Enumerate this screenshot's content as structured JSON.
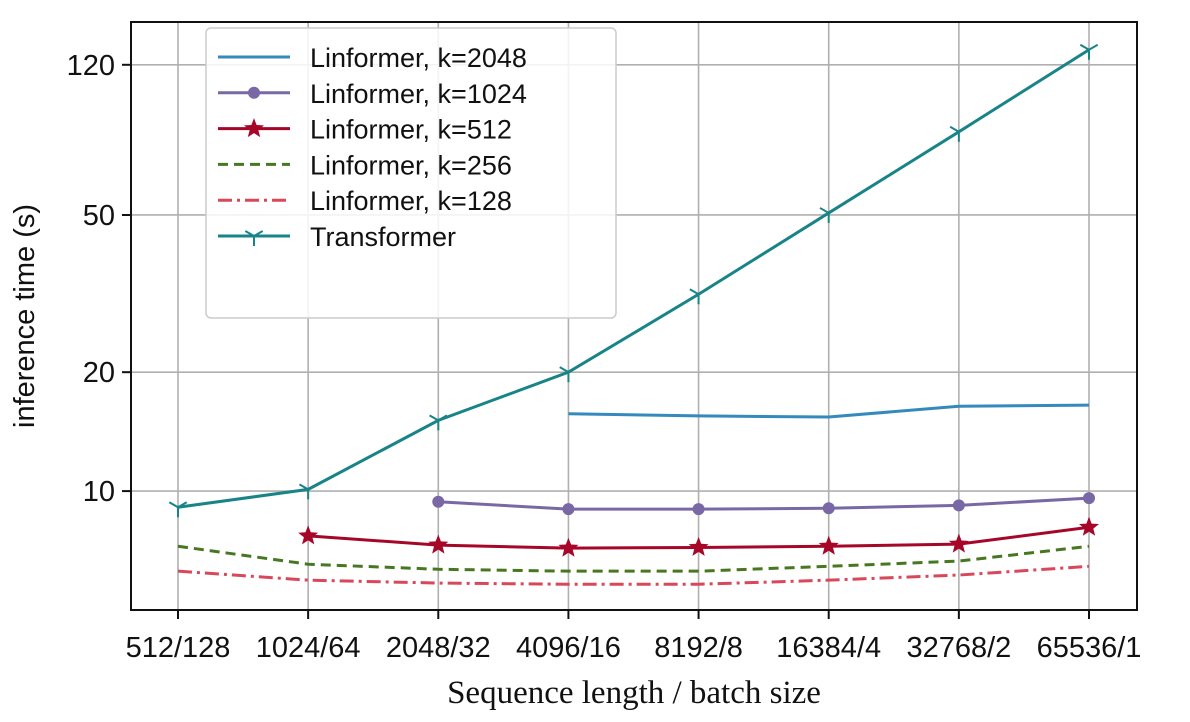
{
  "chart_data": {
    "type": "line",
    "title": "",
    "xlabel": "Sequence length / batch size",
    "ylabel": "inference time (s)",
    "yscale": "log",
    "ylim": [
      5,
      154
    ],
    "yticks": [
      10,
      20,
      50,
      120
    ],
    "grid": true,
    "legend_placement": "top-left",
    "categories": [
      "512/128",
      "1024/64",
      "2048/32",
      "4096/16",
      "8192/8",
      "16384/4",
      "32768/2",
      "65536/1"
    ],
    "series": [
      {
        "name": "Linformer, k=2048",
        "color": "#348ABD",
        "marker": "none",
        "dash": "solid",
        "values": [
          null,
          null,
          null,
          15.7,
          15.5,
          15.4,
          16.4,
          16.5
        ]
      },
      {
        "name": "Linformer, k=1024",
        "color": "#7A68A6",
        "marker": "circle",
        "dash": "solid",
        "values": [
          null,
          null,
          9.4,
          9.0,
          9.0,
          9.05,
          9.2,
          9.6
        ]
      },
      {
        "name": "Linformer, k=512",
        "color": "#A60628",
        "marker": "star",
        "dash": "solid",
        "values": [
          null,
          7.7,
          7.3,
          7.17,
          7.2,
          7.25,
          7.34,
          8.1
        ]
      },
      {
        "name": "Linformer, k=256",
        "color": "#467821",
        "marker": "none",
        "dash": "dashed",
        "values": [
          7.25,
          6.53,
          6.34,
          6.27,
          6.27,
          6.45,
          6.65,
          7.25
        ]
      },
      {
        "name": "Linformer, k=128",
        "color": "#D9475A",
        "marker": "none",
        "dash": "dashdot",
        "values": [
          6.27,
          5.95,
          5.85,
          5.81,
          5.81,
          5.95,
          6.13,
          6.45
        ]
      },
      {
        "name": "Transformer",
        "color": "#188487",
        "marker": "tri_down",
        "dash": "solid",
        "values": [
          9.1,
          10.1,
          15.1,
          20.0,
          31.5,
          50.6,
          81.2,
          131
        ]
      }
    ]
  }
}
